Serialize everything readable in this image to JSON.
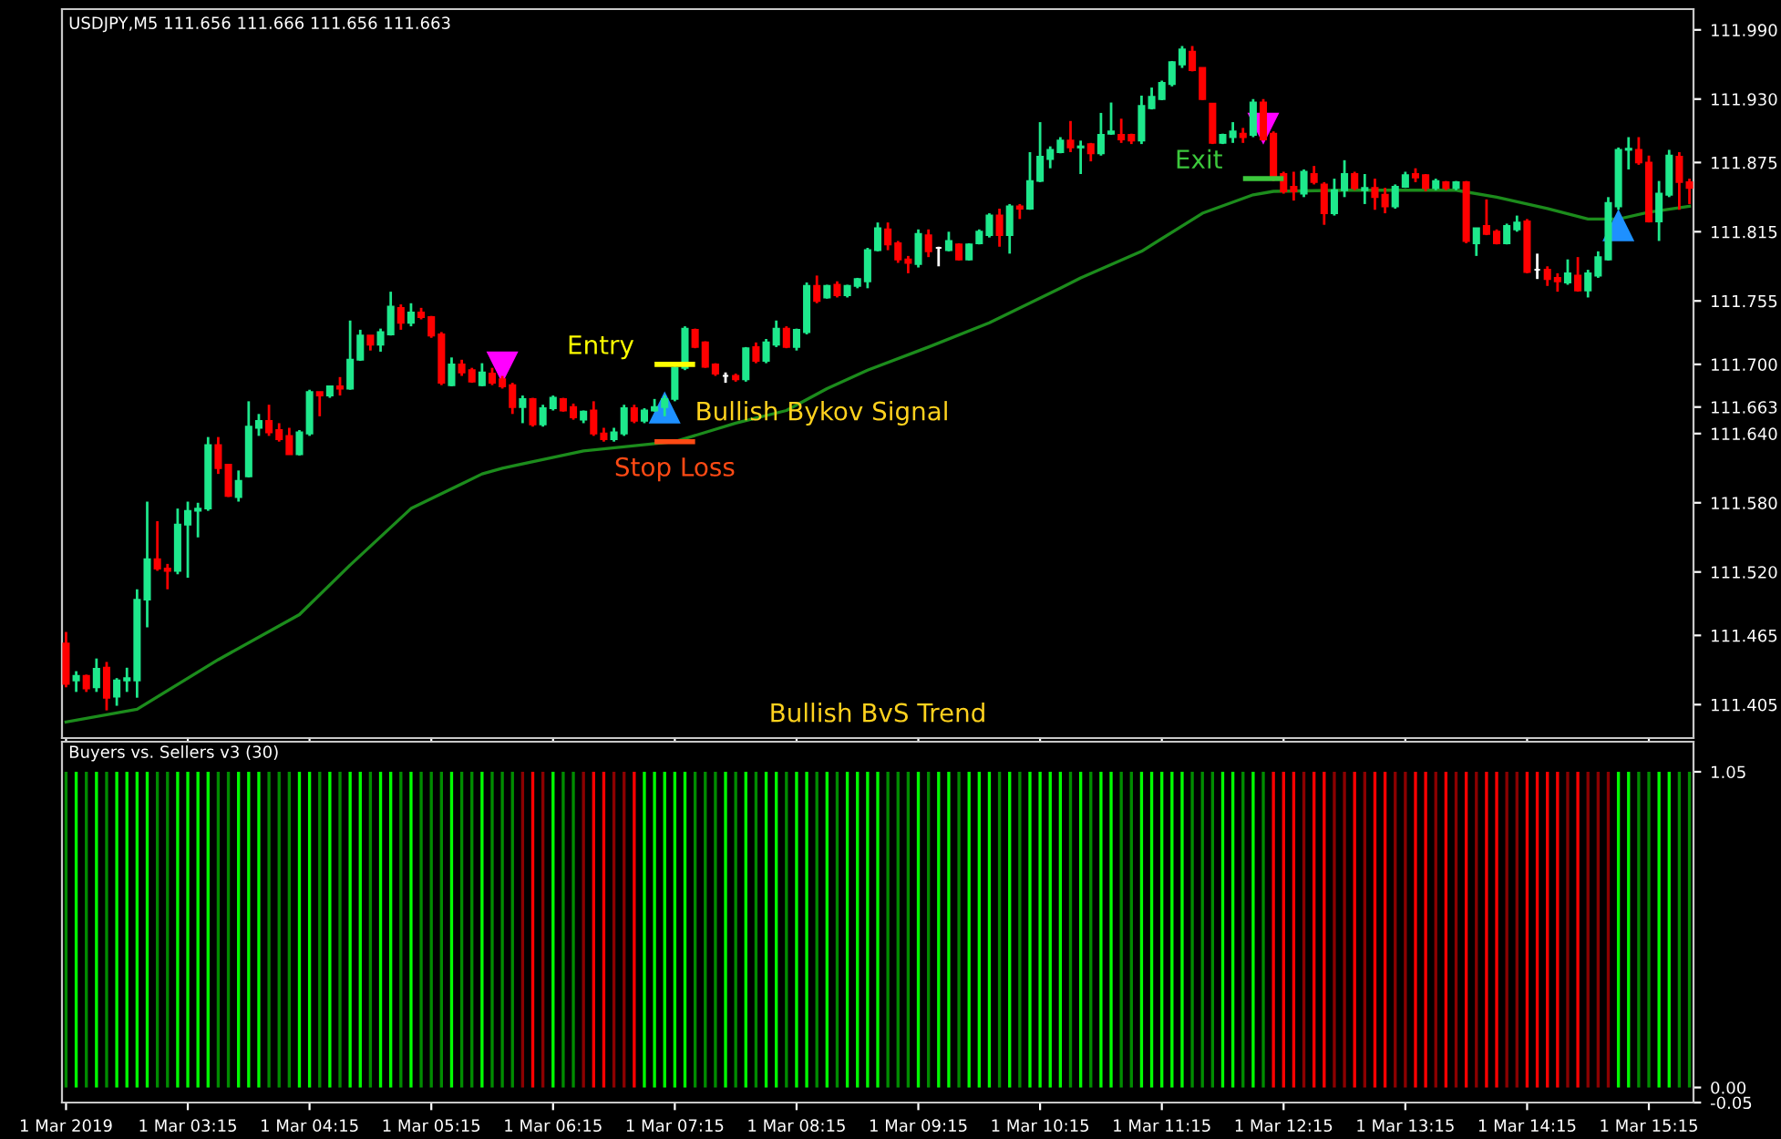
{
  "chart_data": [
    {
      "type": "candlestick",
      "title": "USDJPY,M5 111.656 111.666 111.656 111.663",
      "x": [
        "2019-03-01T02:15",
        "2019-03-01T02:20",
        "2019-03-01T02:25",
        "2019-03-01T02:30",
        "2019-03-01T02:35",
        "2019-03-01T02:40",
        "2019-03-01T02:45",
        "2019-03-01T02:50",
        "2019-03-01T02:55",
        "2019-03-01T03:00",
        "2019-03-01T03:05",
        "2019-03-01T03:10",
        "2019-03-01T03:15",
        "2019-03-01T03:20",
        "2019-03-01T03:25",
        "2019-03-01T03:30",
        "2019-03-01T03:35",
        "2019-03-01T03:40",
        "2019-03-01T03:45",
        "2019-03-01T03:50",
        "2019-03-01T03:55",
        "2019-03-01T04:00",
        "2019-03-01T04:05",
        "2019-03-01T04:10",
        "2019-03-01T04:15",
        "2019-03-01T04:20",
        "2019-03-01T04:25",
        "2019-03-01T04:30",
        "2019-03-01T04:35",
        "2019-03-01T04:40",
        "2019-03-01T04:45",
        "2019-03-01T04:50",
        "2019-03-01T04:55",
        "2019-03-01T05:00",
        "2019-03-01T05:05",
        "2019-03-01T05:10",
        "2019-03-01T05:15",
        "2019-03-01T05:20",
        "2019-03-01T05:25",
        "2019-03-01T05:30",
        "2019-03-01T05:35",
        "2019-03-01T05:40",
        "2019-03-01T05:45",
        "2019-03-01T05:50",
        "2019-03-01T05:55",
        "2019-03-01T06:00",
        "2019-03-01T06:05",
        "2019-03-01T06:10",
        "2019-03-01T06:15",
        "2019-03-01T06:20",
        "2019-03-01T06:25",
        "2019-03-01T06:30",
        "2019-03-01T06:35",
        "2019-03-01T06:40",
        "2019-03-01T06:45",
        "2019-03-01T06:50",
        "2019-03-01T06:55",
        "2019-03-01T07:00",
        "2019-03-01T07:05",
        "2019-03-01T07:10",
        "2019-03-01T07:15",
        "2019-03-01T07:20",
        "2019-03-01T07:25",
        "2019-03-01T07:30",
        "2019-03-01T07:35",
        "2019-03-01T07:40",
        "2019-03-01T07:45",
        "2019-03-01T07:50",
        "2019-03-01T07:55",
        "2019-03-01T08:00",
        "2019-03-01T08:05",
        "2019-03-01T08:10",
        "2019-03-01T08:15",
        "2019-03-01T08:20",
        "2019-03-01T08:25",
        "2019-03-01T08:30",
        "2019-03-01T08:35",
        "2019-03-01T08:40",
        "2019-03-01T08:45",
        "2019-03-01T08:50",
        "2019-03-01T08:55",
        "2019-03-01T09:00",
        "2019-03-01T09:05",
        "2019-03-01T09:10",
        "2019-03-01T09:15",
        "2019-03-01T09:20",
        "2019-03-01T09:25",
        "2019-03-01T09:30",
        "2019-03-01T09:35",
        "2019-03-01T09:40",
        "2019-03-01T09:45",
        "2019-03-01T09:50",
        "2019-03-01T09:55",
        "2019-03-01T10:00",
        "2019-03-01T10:05",
        "2019-03-01T10:10",
        "2019-03-01T10:15",
        "2019-03-01T10:20",
        "2019-03-01T10:25",
        "2019-03-01T10:30",
        "2019-03-01T10:35",
        "2019-03-01T10:40",
        "2019-03-01T10:45",
        "2019-03-01T10:50",
        "2019-03-01T10:55",
        "2019-03-01T11:00",
        "2019-03-01T11:05",
        "2019-03-01T11:10",
        "2019-03-01T11:15",
        "2019-03-01T11:20",
        "2019-03-01T11:25",
        "2019-03-01T11:30",
        "2019-03-01T11:35",
        "2019-03-01T11:40",
        "2019-03-01T11:45",
        "2019-03-01T11:50",
        "2019-03-01T11:55",
        "2019-03-01T12:00",
        "2019-03-01T12:05",
        "2019-03-01T12:10",
        "2019-03-01T12:15",
        "2019-03-01T12:20",
        "2019-03-01T12:25",
        "2019-03-01T12:30",
        "2019-03-01T12:35",
        "2019-03-01T12:40",
        "2019-03-01T12:45",
        "2019-03-01T12:50",
        "2019-03-01T12:55",
        "2019-03-01T13:00",
        "2019-03-01T13:05",
        "2019-03-01T13:10",
        "2019-03-01T13:15",
        "2019-03-01T13:20",
        "2019-03-01T13:25",
        "2019-03-01T13:30",
        "2019-03-01T13:35",
        "2019-03-01T13:40",
        "2019-03-01T13:45",
        "2019-03-01T13:50",
        "2019-03-01T13:55",
        "2019-03-01T14:00",
        "2019-03-01T14:05",
        "2019-03-01T14:10",
        "2019-03-01T14:15",
        "2019-03-01T14:20",
        "2019-03-01T14:25",
        "2019-03-01T14:30",
        "2019-03-01T14:35",
        "2019-03-01T14:40",
        "2019-03-01T14:45",
        "2019-03-01T14:50",
        "2019-03-01T14:55",
        "2019-03-01T15:00",
        "2019-03-01T15:05",
        "2019-03-01T15:10",
        "2019-03-01T15:15",
        "2019-03-01T15:20",
        "2019-03-01T15:25",
        "2019-03-01T15:30",
        "2019-03-01T15:35"
      ],
      "ohlc": [
        [
          111.458,
          111.468,
          111.42,
          111.423
        ],
        [
          111.426,
          111.434,
          111.416,
          111.43
        ],
        [
          111.43,
          111.431,
          111.416,
          111.419
        ],
        [
          111.42,
          111.445,
          111.416,
          111.436
        ],
        [
          111.437,
          111.442,
          111.4,
          111.411
        ],
        [
          111.412,
          111.428,
          111.404,
          111.426
        ],
        [
          111.426,
          111.437,
          111.416,
          111.428
        ],
        [
          111.426,
          111.505,
          111.411,
          111.496
        ],
        [
          111.496,
          111.581,
          111.472,
          111.531
        ],
        [
          111.531,
          111.564,
          111.521,
          111.523
        ],
        [
          111.523,
          111.527,
          111.505,
          111.521
        ],
        [
          111.521,
          111.575,
          111.518,
          111.561
        ],
        [
          111.561,
          111.581,
          111.515,
          111.573
        ],
        [
          111.573,
          111.58,
          111.55,
          111.575
        ],
        [
          111.575,
          111.637,
          111.573,
          111.63
        ],
        [
          111.63,
          111.637,
          111.605,
          111.61
        ],
        [
          111.613,
          111.613,
          111.585,
          111.586
        ],
        [
          111.585,
          111.608,
          111.581,
          111.599
        ],
        [
          111.603,
          111.668,
          111.602,
          111.646
        ],
        [
          111.645,
          111.657,
          111.638,
          111.651
        ],
        [
          111.651,
          111.665,
          111.638,
          111.641
        ],
        [
          111.643,
          111.649,
          111.633,
          111.635
        ],
        [
          111.638,
          111.645,
          111.622,
          111.622
        ],
        [
          111.622,
          111.643,
          111.621,
          111.641
        ],
        [
          111.64,
          111.678,
          111.638,
          111.676
        ],
        [
          111.676,
          111.676,
          111.655,
          111.673
        ],
        [
          111.673,
          111.681,
          111.671,
          111.681
        ],
        [
          111.681,
          111.689,
          111.673,
          111.679
        ],
        [
          111.679,
          111.738,
          111.678,
          111.704
        ],
        [
          111.704,
          111.73,
          111.703,
          111.725
        ],
        [
          111.725,
          111.725,
          111.712,
          111.717
        ],
        [
          111.717,
          111.731,
          111.711,
          111.728
        ],
        [
          111.726,
          111.763,
          111.725,
          111.75
        ],
        [
          111.749,
          111.752,
          111.73,
          111.736
        ],
        [
          111.736,
          111.753,
          111.733,
          111.745
        ],
        [
          111.745,
          111.749,
          111.739,
          111.741
        ],
        [
          111.741,
          111.742,
          111.723,
          111.725
        ],
        [
          111.726,
          111.728,
          111.682,
          111.684
        ],
        [
          111.682,
          111.706,
          111.681,
          111.7
        ],
        [
          111.7,
          111.704,
          111.69,
          111.693
        ],
        [
          111.695,
          111.697,
          111.684,
          111.685
        ],
        [
          111.682,
          111.701,
          111.681,
          111.693
        ],
        [
          111.692,
          111.697,
          111.682,
          111.684
        ],
        [
          111.687,
          111.69,
          111.679,
          111.681
        ],
        [
          111.682,
          111.684,
          111.657,
          111.663
        ],
        [
          111.663,
          111.673,
          111.649,
          111.67
        ],
        [
          111.67,
          111.671,
          111.646,
          111.648
        ],
        [
          111.648,
          111.665,
          111.646,
          111.662
        ],
        [
          111.662,
          111.673,
          111.66,
          111.671
        ],
        [
          111.67,
          111.671,
          111.659,
          111.66
        ],
        [
          111.663,
          111.666,
          111.652,
          111.654
        ],
        [
          111.652,
          111.66,
          111.649,
          111.659
        ],
        [
          111.66,
          111.668,
          111.638,
          111.64
        ],
        [
          111.64,
          111.645,
          111.633,
          111.635
        ],
        [
          111.635,
          111.645,
          111.633,
          111.641
        ],
        [
          111.64,
          111.665,
          111.638,
          111.662
        ],
        [
          111.662,
          111.665,
          111.649,
          111.651
        ],
        [
          111.651,
          111.662,
          111.649,
          111.66
        ],
        [
          111.66,
          111.67,
          111.659,
          111.663
        ],
        [
          111.663,
          111.673,
          111.655,
          111.67
        ],
        [
          111.67,
          111.698,
          111.668,
          111.697
        ],
        [
          111.697,
          111.733,
          111.695,
          111.731
        ],
        [
          111.73,
          111.731,
          111.714,
          111.715
        ],
        [
          111.719,
          111.72,
          111.697,
          111.698
        ],
        [
          111.7,
          111.701,
          111.69,
          111.692
        ],
        [
          111.69,
          111.693,
          111.684,
          111.69
        ],
        [
          111.69,
          111.692,
          111.685,
          111.687
        ],
        [
          111.687,
          111.715,
          111.685,
          111.714
        ],
        [
          111.715,
          111.719,
          111.701,
          111.703
        ],
        [
          111.703,
          111.722,
          111.701,
          111.719
        ],
        [
          111.717,
          111.738,
          111.715,
          111.731
        ],
        [
          111.731,
          111.733,
          111.714,
          111.715
        ],
        [
          111.715,
          111.731,
          111.712,
          111.73
        ],
        [
          111.728,
          111.771,
          111.726,
          111.768
        ],
        [
          111.768,
          111.777,
          111.753,
          111.755
        ],
        [
          111.758,
          111.769,
          111.757,
          111.768
        ],
        [
          111.769,
          111.772,
          111.758,
          111.76
        ],
        [
          111.76,
          111.769,
          111.758,
          111.768
        ],
        [
          111.768,
          111.775,
          111.766,
          111.774
        ],
        [
          111.772,
          111.801,
          111.766,
          111.799
        ],
        [
          111.799,
          111.823,
          111.798,
          111.818
        ],
        [
          111.817,
          111.823,
          111.799,
          111.804
        ],
        [
          111.805,
          111.807,
          111.788,
          111.791
        ],
        [
          111.791,
          111.794,
          111.779,
          111.788
        ],
        [
          111.787,
          111.817,
          111.784,
          111.813
        ],
        [
          111.812,
          111.817,
          111.793,
          111.798
        ],
        [
          111.801,
          111.802,
          111.785,
          111.801
        ],
        [
          111.799,
          111.815,
          111.798,
          111.807
        ],
        [
          111.804,
          111.805,
          111.79,
          111.791
        ],
        [
          111.791,
          111.805,
          111.79,
          111.804
        ],
        [
          111.805,
          111.817,
          111.804,
          111.815
        ],
        [
          111.812,
          111.831,
          111.81,
          111.829
        ],
        [
          111.829,
          111.835,
          111.802,
          111.812
        ],
        [
          111.812,
          111.839,
          111.796,
          111.837
        ],
        [
          111.837,
          111.839,
          111.826,
          111.835
        ],
        [
          111.835,
          111.884,
          111.834,
          111.859
        ],
        [
          111.859,
          111.91,
          111.858,
          111.88
        ],
        [
          111.878,
          111.889,
          111.87,
          111.886
        ],
        [
          111.884,
          111.897,
          111.883,
          111.894
        ],
        [
          111.894,
          111.911,
          111.884,
          111.888
        ],
        [
          111.888,
          111.894,
          111.865,
          111.889
        ],
        [
          111.891,
          111.892,
          111.876,
          111.883
        ],
        [
          111.883,
          111.918,
          111.881,
          111.899
        ],
        [
          111.9,
          111.927,
          111.899,
          111.902
        ],
        [
          111.899,
          111.913,
          111.892,
          111.895
        ],
        [
          111.899,
          111.9,
          111.891,
          111.894
        ],
        [
          111.894,
          111.933,
          111.891,
          111.924
        ],
        [
          111.922,
          111.94,
          111.921,
          111.932
        ],
        [
          111.93,
          111.946,
          111.929,
          111.944
        ],
        [
          111.943,
          111.963,
          111.941,
          111.962
        ],
        [
          111.96,
          111.976,
          111.957,
          111.973
        ],
        [
          111.971,
          111.976,
          111.954,
          111.955
        ],
        [
          111.957,
          111.957,
          111.929,
          111.93
        ],
        [
          111.926,
          111.926,
          111.891,
          111.892
        ],
        [
          111.892,
          111.9,
          111.891,
          111.899
        ],
        [
          111.897,
          111.91,
          111.892,
          111.902
        ],
        [
          111.9,
          111.905,
          111.892,
          111.897
        ],
        [
          111.899,
          111.93,
          111.897,
          111.927
        ],
        [
          111.927,
          111.93,
          111.894,
          111.895
        ],
        [
          111.9,
          111.902,
          111.859,
          111.861
        ],
        [
          111.865,
          111.867,
          111.848,
          111.85
        ],
        [
          111.854,
          111.867,
          111.842,
          111.85
        ],
        [
          111.848,
          111.869,
          111.845,
          111.867
        ],
        [
          111.865,
          111.872,
          111.856,
          111.858
        ],
        [
          111.856,
          111.858,
          111.821,
          111.831
        ],
        [
          111.831,
          111.861,
          111.829,
          111.851
        ],
        [
          111.851,
          111.877,
          111.845,
          111.865
        ],
        [
          111.865,
          111.867,
          111.851,
          111.853
        ],
        [
          111.851,
          111.865,
          111.839,
          111.853
        ],
        [
          111.853,
          111.861,
          111.834,
          111.845
        ],
        [
          111.847,
          111.853,
          111.831,
          111.837
        ],
        [
          111.837,
          111.856,
          111.835,
          111.854
        ],
        [
          111.854,
          111.867,
          111.853,
          111.864
        ],
        [
          111.865,
          111.87,
          111.858,
          111.862
        ],
        [
          111.864,
          111.865,
          111.85,
          111.853
        ],
        [
          111.853,
          111.861,
          111.851,
          111.859
        ],
        [
          111.858,
          111.859,
          111.851,
          111.853
        ],
        [
          111.853,
          111.859,
          111.851,
          111.858
        ],
        [
          111.858,
          111.859,
          111.805,
          111.807
        ],
        [
          111.805,
          111.818,
          111.794,
          111.818
        ],
        [
          111.82,
          111.843,
          111.812,
          111.813
        ],
        [
          111.815,
          111.817,
          111.804,
          111.805
        ],
        [
          111.805,
          111.822,
          111.804,
          111.82
        ],
        [
          111.817,
          111.829,
          111.815,
          111.823
        ],
        [
          111.824,
          111.826,
          111.779,
          111.78
        ],
        [
          111.782,
          111.796,
          111.774,
          111.782
        ],
        [
          111.782,
          111.785,
          111.768,
          111.774
        ],
        [
          111.775,
          111.779,
          111.763,
          111.772
        ],
        [
          111.771,
          111.791,
          111.769,
          111.779
        ],
        [
          111.777,
          111.793,
          111.763,
          111.764
        ],
        [
          111.764,
          111.782,
          111.758,
          111.779
        ],
        [
          111.777,
          111.798,
          111.775,
          111.793
        ],
        [
          111.791,
          111.845,
          111.79,
          111.84
        ],
        [
          111.837,
          111.888,
          111.834,
          111.886
        ],
        [
          111.886,
          111.897,
          111.869,
          111.887
        ],
        [
          111.886,
          111.897,
          111.873,
          111.875
        ],
        [
          111.875,
          111.881,
          111.823,
          111.824
        ],
        [
          111.824,
          111.859,
          111.807,
          111.848
        ],
        [
          111.847,
          111.886,
          111.845,
          111.881
        ],
        [
          111.88,
          111.884,
          111.834,
          111.858
        ],
        [
          111.858,
          111.861,
          111.839,
          111.853
        ]
      ],
      "colors": [
        "#ff0000",
        "#1ee88c",
        "#ff0000",
        "#1ee88c",
        "#ff0000",
        "#1ee88c",
        "#1ee88c",
        "#1ee88c",
        "#1ee88c",
        "#ff0000",
        "#ff0000",
        "#1ee88c",
        "#1ee88c",
        "#1ee88c",
        "#1ee88c",
        "#ff0000",
        "#ff0000",
        "#1ee88c",
        "#1ee88c",
        "#1ee88c",
        "#ff0000",
        "#ff0000",
        "#ff0000",
        "#1ee88c",
        "#1ee88c",
        "#ff0000",
        "#1ee88c",
        "#ff0000",
        "#1ee88c",
        "#1ee88c",
        "#ff0000",
        "#1ee88c",
        "#1ee88c",
        "#ff0000",
        "#1ee88c",
        "#ff0000",
        "#ff0000",
        "#ff0000",
        "#1ee88c",
        "#ff0000",
        "#ff0000",
        "#1ee88c",
        "#ff0000",
        "#ff0000",
        "#ff0000",
        "#1ee88c",
        "#ff0000",
        "#1ee88c",
        "#1ee88c",
        "#ff0000",
        "#ff0000",
        "#1ee88c",
        "#ff0000",
        "#ff0000",
        "#1ee88c",
        "#1ee88c",
        "#ff0000",
        "#1ee88c",
        "#1ee88c",
        "#1ee88c",
        "#1ee88c",
        "#1ee88c",
        "#ff0000",
        "#ff0000",
        "#ff0000",
        "#ffffff",
        "#ff0000",
        "#1ee88c",
        "#ff0000",
        "#1ee88c",
        "#1ee88c",
        "#ff0000",
        "#1ee88c",
        "#1ee88c",
        "#ff0000",
        "#1ee88c",
        "#ff0000",
        "#1ee88c",
        "#1ee88c",
        "#1ee88c",
        "#1ee88c",
        "#ff0000",
        "#ff0000",
        "#ff0000",
        "#1ee88c",
        "#ff0000",
        "#ffffff",
        "#1ee88c",
        "#ff0000",
        "#1ee88c",
        "#1ee88c",
        "#1ee88c",
        "#ff0000",
        "#1ee88c",
        "#ff0000",
        "#1ee88c",
        "#1ee88c",
        "#1ee88c",
        "#1ee88c",
        "#ff0000",
        "#1ee88c",
        "#ff0000",
        "#1ee88c",
        "#1ee88c",
        "#ff0000",
        "#ff0000",
        "#1ee88c",
        "#1ee88c",
        "#1ee88c",
        "#1ee88c",
        "#1ee88c",
        "#ff0000",
        "#ff0000",
        "#ff0000",
        "#1ee88c",
        "#1ee88c",
        "#ff0000",
        "#1ee88c",
        "#ff0000",
        "#ff0000",
        "#ff0000",
        "#ff0000",
        "#1ee88c",
        "#ff0000",
        "#ff0000",
        "#1ee88c",
        "#1ee88c",
        "#ff0000",
        "#1ee88c",
        "#ff0000",
        "#ff0000",
        "#1ee88c",
        "#1ee88c",
        "#ff0000",
        "#ff0000",
        "#1ee88c",
        "#ff0000",
        "#1ee88c",
        "#ff0000",
        "#1ee88c",
        "#ff0000",
        "#ff0000",
        "#1ee88c",
        "#1ee88c",
        "#ff0000",
        "#ffffff",
        "#ff0000",
        "#ff0000",
        "#1ee88c",
        "#ff0000",
        "#1ee88c",
        "#1ee88c",
        "#1ee88c",
        "#1ee88c",
        "#1ee88c",
        "#ff0000",
        "#ff0000",
        "#1ee88c",
        "#1ee88c",
        "#ff0000",
        "#ff0000"
      ],
      "series": [
        {
          "type": "line",
          "color": "#1c8c1c",
          "x": [
            "2019-03-01T02:15",
            "2019-03-01T02:50",
            "2019-03-01T03:30",
            "2019-03-01T04:10",
            "2019-03-01T04:35",
            "2019-03-01T05:05",
            "2019-03-01T05:40",
            "2019-03-01T05:50",
            "2019-03-01T06:30",
            "2019-03-01T07:15",
            "2019-03-01T07:45",
            "2019-03-01T08:10",
            "2019-03-01T08:30",
            "2019-03-01T08:50",
            "2019-03-01T09:20",
            "2019-03-01T09:50",
            "2019-03-01T10:25",
            "2019-03-01T10:35",
            "2019-03-01T11:05",
            "2019-03-01T11:35",
            "2019-03-01T12:00",
            "2019-03-01T12:10",
            "2019-03-01T12:45",
            "2019-03-01T13:40",
            "2019-03-01T14:00",
            "2019-03-01T14:25",
            "2019-03-01T14:45",
            "2019-03-01T15:00",
            "2019-03-01T15:15",
            "2019-03-01T15:35"
          ],
          "values": [
            111.39,
            111.401,
            111.444,
            111.483,
            111.526,
            111.575,
            111.605,
            111.61,
            111.625,
            111.633,
            111.649,
            111.66,
            111.679,
            111.695,
            111.715,
            111.736,
            111.766,
            111.775,
            111.798,
            111.831,
            111.847,
            111.85,
            111.851,
            111.851,
            111.845,
            111.835,
            111.826,
            111.826,
            111.832,
            111.837
          ]
        },
        {
          "type": "scatter",
          "color": "#ff00ff",
          "marker": "triangle",
          "x": [
            "2019-03-01T05:50",
            "2019-03-01T12:05"
          ],
          "values": [
            111.698,
            111.905
          ]
        },
        {
          "type": "scatter",
          "color": "#1e90ff",
          "marker": "triangle",
          "x": [
            "2019-03-01T07:10",
            "2019-03-01T15:00"
          ],
          "values": [
            111.662,
            111.82
          ]
        }
      ],
      "xlim": [
        "2019-03-01T02:13",
        "2019-03-01T15:37"
      ],
      "ylim": [
        111.376,
        112.008
      ],
      "xticks": [
        {
          "value": "2019-03-01T02:15",
          "label": null
        },
        {
          "value": "2019-03-01T03:15",
          "label": null
        },
        {
          "value": "2019-03-01T04:15",
          "label": null
        },
        {
          "value": "2019-03-01T05:15",
          "label": null
        },
        {
          "value": "2019-03-01T06:15",
          "label": null
        },
        {
          "value": "2019-03-01T07:15",
          "label": null
        },
        {
          "value": "2019-03-01T08:15",
          "label": null
        },
        {
          "value": "2019-03-01T09:15",
          "label": null
        },
        {
          "value": "2019-03-01T10:15",
          "label": null
        },
        {
          "value": "2019-03-01T11:15",
          "label": null
        },
        {
          "value": "2019-03-01T12:15",
          "label": null
        },
        {
          "value": "2019-03-01T13:15",
          "label": null
        },
        {
          "value": "2019-03-01T14:15",
          "label": null
        },
        {
          "value": "2019-03-01T15:15",
          "label": null
        }
      ],
      "yticks": [
        {
          "value": 111.99,
          "label": "111.990"
        },
        {
          "value": 111.93,
          "label": "111.930"
        },
        {
          "value": 111.875,
          "label": "111.875"
        },
        {
          "value": 111.815,
          "label": "111.815"
        },
        {
          "value": 111.755,
          "label": "111.755"
        },
        {
          "value": 111.7,
          "label": "111.700"
        },
        {
          "value": 111.663,
          "label": "111.663"
        },
        {
          "value": 111.64,
          "label": "111.640"
        },
        {
          "value": 111.58,
          "label": "111.580"
        },
        {
          "value": 111.52,
          "label": "111.520"
        },
        {
          "value": 111.465,
          "label": "111.465"
        },
        {
          "value": 111.405,
          "label": "111.405"
        }
      ],
      "tick_labels": "y",
      "annotations": [
        {
          "text": "Entry",
          "x": "2019-03-01T07:15",
          "y": 111.7
        },
        {
          "text": "Stop Loss",
          "x": "2019-03-01T07:15",
          "y": 111.633
        },
        {
          "text": "Bullish Bykov Signal",
          "x": "2019-03-01T07:10",
          "y": 111.662
        },
        {
          "text": "Exit",
          "x": "2019-03-01T12:05",
          "y": 111.861
        },
        "Bullish BvS Trend"
      ]
    },
    {
      "type": "bar",
      "title": "Buyers vs. Sellers v3 (30)",
      "x": [
        "2019-03-01T02:15",
        "2019-03-01T02:20",
        "2019-03-01T02:25",
        "2019-03-01T02:30",
        "2019-03-01T02:35",
        "2019-03-01T02:40",
        "2019-03-01T02:45",
        "2019-03-01T02:50",
        "2019-03-01T02:55",
        "2019-03-01T03:00",
        "2019-03-01T03:05",
        "2019-03-01T03:10",
        "2019-03-01T03:15",
        "2019-03-01T03:20",
        "2019-03-01T03:25",
        "2019-03-01T03:30",
        "2019-03-01T03:35",
        "2019-03-01T03:40",
        "2019-03-01T03:45",
        "2019-03-01T03:50",
        "2019-03-01T03:55",
        "2019-03-01T04:00",
        "2019-03-01T04:05",
        "2019-03-01T04:10",
        "2019-03-01T04:15",
        "2019-03-01T04:20",
        "2019-03-01T04:25",
        "2019-03-01T04:30",
        "2019-03-01T04:35",
        "2019-03-01T04:40",
        "2019-03-01T04:45",
        "2019-03-01T04:50",
        "2019-03-01T04:55",
        "2019-03-01T05:00",
        "2019-03-01T05:05",
        "2019-03-01T05:10",
        "2019-03-01T05:15",
        "2019-03-01T05:20",
        "2019-03-01T05:25",
        "2019-03-01T05:30",
        "2019-03-01T05:35",
        "2019-03-01T05:40",
        "2019-03-01T05:45",
        "2019-03-01T05:50",
        "2019-03-01T05:55",
        "2019-03-01T06:00",
        "2019-03-01T06:05",
        "2019-03-01T06:10",
        "2019-03-01T06:15",
        "2019-03-01T06:20",
        "2019-03-01T06:25",
        "2019-03-01T06:30",
        "2019-03-01T06:35",
        "2019-03-01T06:40",
        "2019-03-01T06:45",
        "2019-03-01T06:50",
        "2019-03-01T06:55",
        "2019-03-01T07:00",
        "2019-03-01T07:05",
        "2019-03-01T07:10",
        "2019-03-01T07:15",
        "2019-03-01T07:20",
        "2019-03-01T07:25",
        "2019-03-01T07:30",
        "2019-03-01T07:35",
        "2019-03-01T07:40",
        "2019-03-01T07:45",
        "2019-03-01T07:50",
        "2019-03-01T07:55",
        "2019-03-01T08:00",
        "2019-03-01T08:05",
        "2019-03-01T08:10",
        "2019-03-01T08:15",
        "2019-03-01T08:20",
        "2019-03-01T08:25",
        "2019-03-01T08:30",
        "2019-03-01T08:35",
        "2019-03-01T08:40",
        "2019-03-01T08:45",
        "2019-03-01T08:50",
        "2019-03-01T08:55",
        "2019-03-01T09:00",
        "2019-03-01T09:05",
        "2019-03-01T09:10",
        "2019-03-01T09:15",
        "2019-03-01T09:20",
        "2019-03-01T09:25",
        "2019-03-01T09:30",
        "2019-03-01T09:35",
        "2019-03-01T09:40",
        "2019-03-01T09:45",
        "2019-03-01T09:50",
        "2019-03-01T09:55",
        "2019-03-01T10:00",
        "2019-03-01T10:05",
        "2019-03-01T10:10",
        "2019-03-01T10:15",
        "2019-03-01T10:20",
        "2019-03-01T10:25",
        "2019-03-01T10:30",
        "2019-03-01T10:35",
        "2019-03-01T10:40",
        "2019-03-01T10:45",
        "2019-03-01T10:50",
        "2019-03-01T10:55",
        "2019-03-01T11:00",
        "2019-03-01T11:05",
        "2019-03-01T11:10",
        "2019-03-01T11:15",
        "2019-03-01T11:20",
        "2019-03-01T11:25",
        "2019-03-01T11:30",
        "2019-03-01T11:35",
        "2019-03-01T11:40",
        "2019-03-01T11:45",
        "2019-03-01T11:50",
        "2019-03-01T11:55",
        "2019-03-01T12:00",
        "2019-03-01T12:05",
        "2019-03-01T12:10",
        "2019-03-01T12:15",
        "2019-03-01T12:20",
        "2019-03-01T12:25",
        "2019-03-01T12:30",
        "2019-03-01T12:35",
        "2019-03-01T12:40",
        "2019-03-01T12:45",
        "2019-03-01T12:50",
        "2019-03-01T12:55",
        "2019-03-01T13:00",
        "2019-03-01T13:05",
        "2019-03-01T13:10",
        "2019-03-01T13:15",
        "2019-03-01T13:20",
        "2019-03-01T13:25",
        "2019-03-01T13:30",
        "2019-03-01T13:35",
        "2019-03-01T13:40",
        "2019-03-01T13:45",
        "2019-03-01T13:50",
        "2019-03-01T13:55",
        "2019-03-01T14:00",
        "2019-03-01T14:05",
        "2019-03-01T14:10",
        "2019-03-01T14:15",
        "2019-03-01T14:20",
        "2019-03-01T14:25",
        "2019-03-01T14:30",
        "2019-03-01T14:35",
        "2019-03-01T14:40",
        "2019-03-01T14:45",
        "2019-03-01T14:50",
        "2019-03-01T14:55",
        "2019-03-01T15:00",
        "2019-03-01T15:05",
        "2019-03-01T15:10",
        "2019-03-01T15:15",
        "2019-03-01T15:20",
        "2019-03-01T15:25",
        "2019-03-01T15:30",
        "2019-03-01T15:35"
      ],
      "xlim": [
        "2019-03-01T02:13",
        "2019-03-01T15:37"
      ],
      "xticks": [
        {
          "value": "2019-03-01T02:15",
          "label": "1 Mar 2019"
        },
        {
          "value": "2019-03-01T03:15",
          "label": "1 Mar 03:15"
        },
        {
          "value": "2019-03-01T04:15",
          "label": "1 Mar 04:15"
        },
        {
          "value": "2019-03-01T05:15",
          "label": "1 Mar 05:15"
        },
        {
          "value": "2019-03-01T06:15",
          "label": "1 Mar 06:15"
        },
        {
          "value": "2019-03-01T07:15",
          "label": "1 Mar 07:15"
        },
        {
          "value": "2019-03-01T08:15",
          "label": "1 Mar 08:15"
        },
        {
          "value": "2019-03-01T09:15",
          "label": "1 Mar 09:15"
        },
        {
          "value": "2019-03-01T10:15",
          "label": "1 Mar 10:15"
        },
        {
          "value": "2019-03-01T11:15",
          "label": "1 Mar 11:15"
        },
        {
          "value": "2019-03-01T12:15",
          "label": "1 Mar 12:15"
        },
        {
          "value": "2019-03-01T13:15",
          "label": "1 Mar 13:15"
        },
        {
          "value": "2019-03-01T14:15",
          "label": "1 Mar 14:15"
        },
        {
          "value": "2019-03-01T15:15",
          "label": "1 Mar 15:15"
        }
      ],
      "values": [
        1.05,
        1.05,
        1.05,
        1.05,
        1.05,
        1.05,
        1.05,
        1.05,
        1.05,
        1.05,
        1.05,
        1.05,
        1.05,
        1.05,
        1.05,
        1.05,
        1.05,
        1.05,
        1.05,
        1.05,
        1.05,
        1.05,
        1.05,
        1.05,
        1.05,
        1.05,
        1.05,
        1.05,
        1.05,
        1.05,
        1.05,
        1.05,
        1.05,
        1.05,
        1.05,
        1.05,
        1.05,
        1.05,
        1.05,
        1.05,
        1.05,
        1.05,
        1.05,
        1.05,
        1.05,
        1.05,
        1.05,
        1.05,
        1.05,
        1.05,
        1.05,
        1.05,
        1.05,
        1.05,
        1.05,
        1.05,
        1.05,
        1.05,
        1.05,
        1.05,
        1.05,
        1.05,
        1.05,
        1.05,
        1.05,
        1.05,
        1.05,
        1.05,
        1.05,
        1.05,
        1.05,
        1.05,
        1.05,
        1.05,
        1.05,
        1.05,
        1.05,
        1.05,
        1.05,
        1.05,
        1.05,
        1.05,
        1.05,
        1.05,
        1.05,
        1.05,
        1.05,
        1.05,
        1.05,
        1.05,
        1.05,
        1.05,
        1.05,
        1.05,
        1.05,
        1.05,
        1.05,
        1.05,
        1.05,
        1.05,
        1.05,
        1.05,
        1.05,
        1.05,
        1.05,
        1.05,
        1.05,
        1.05,
        1.05,
        1.05,
        1.05,
        1.05,
        1.05,
        1.05,
        1.05,
        1.05,
        1.05,
        1.05,
        1.05,
        1.05,
        1.05,
        1.05,
        1.05,
        1.05,
        1.05,
        1.05,
        1.05,
        1.05,
        1.05,
        1.05,
        1.05,
        1.05,
        1.05,
        1.05,
        1.05,
        1.05,
        1.05,
        1.05,
        1.05,
        1.05,
        1.05,
        1.05,
        1.05,
        1.05,
        1.05,
        1.05,
        1.05,
        1.05,
        1.05,
        1.05,
        1.05,
        1.05,
        1.05,
        1.05,
        1.05,
        1.05,
        1.05,
        1.05,
        1.05,
        1.05,
        1.05
      ],
      "colors": [
        "#008c00",
        "#00ff00",
        "#008c00",
        "#00ff00",
        "#008c00",
        "#00ff00",
        "#00ff00",
        "#00ff00",
        "#00ff00",
        "#008c00",
        "#008c00",
        "#00ff00",
        "#00ff00",
        "#00ff00",
        "#00ff00",
        "#008c00",
        "#008c00",
        "#00ff00",
        "#00ff00",
        "#00ff00",
        "#008c00",
        "#008c00",
        "#008c00",
        "#00ff00",
        "#00ff00",
        "#008c00",
        "#00ff00",
        "#008c00",
        "#00ff00",
        "#00ff00",
        "#008c00",
        "#00ff00",
        "#00ff00",
        "#008c00",
        "#00ff00",
        "#008c00",
        "#008c00",
        "#008c00",
        "#00ff00",
        "#008c00",
        "#008c00",
        "#00ff00",
        "#008c00",
        "#008c00",
        "#008c00",
        "#8b0000",
        "#ff0000",
        "#8b0000",
        "#00ff00",
        "#008c00",
        "#008c00",
        "#8b0000",
        "#ff0000",
        "#ff0000",
        "#8b0000",
        "#8b0000",
        "#ff0000",
        "#00ff00",
        "#00ff00",
        "#00ff00",
        "#00ff00",
        "#00ff00",
        "#008c00",
        "#008c00",
        "#008c00",
        "#00ff00",
        "#008c00",
        "#00ff00",
        "#008c00",
        "#00ff00",
        "#00ff00",
        "#008c00",
        "#00ff00",
        "#00ff00",
        "#008c00",
        "#00ff00",
        "#008c00",
        "#00ff00",
        "#00ff00",
        "#00ff00",
        "#00ff00",
        "#008c00",
        "#008c00",
        "#008c00",
        "#00ff00",
        "#008c00",
        "#00ff00",
        "#00ff00",
        "#008c00",
        "#00ff00",
        "#00ff00",
        "#00ff00",
        "#008c00",
        "#00ff00",
        "#008c00",
        "#00ff00",
        "#00ff00",
        "#00ff00",
        "#00ff00",
        "#008c00",
        "#00ff00",
        "#008c00",
        "#00ff00",
        "#00ff00",
        "#008c00",
        "#008c00",
        "#00ff00",
        "#00ff00",
        "#00ff00",
        "#00ff00",
        "#00ff00",
        "#008c00",
        "#008c00",
        "#008c00",
        "#00ff00",
        "#00ff00",
        "#008c00",
        "#00ff00",
        "#008c00",
        "#ff0000",
        "#ff0000",
        "#ff0000",
        "#8b0000",
        "#ff0000",
        "#ff0000",
        "#8b0000",
        "#8b0000",
        "#ff0000",
        "#8b0000",
        "#ff0000",
        "#ff0000",
        "#8b0000",
        "#8b0000",
        "#ff0000",
        "#ff0000",
        "#8b0000",
        "#ff0000",
        "#8b0000",
        "#ff0000",
        "#8b0000",
        "#ff0000",
        "#ff0000",
        "#8b0000",
        "#8b0000",
        "#ff0000",
        "#ff0000",
        "#ff0000",
        "#ff0000",
        "#8b0000",
        "#ff0000",
        "#8b0000",
        "#8b0000",
        "#8b0000",
        "#00ff00",
        "#00ff00",
        "#008c00",
        "#008c00",
        "#00ff00",
        "#00ff00",
        "#008c00",
        "#008c00"
      ],
      "ylim": [
        -0.05,
        1.15
      ],
      "yticks": [
        1.05,
        {
          "value": 0,
          "label": "0.00"
        },
        -0.05
      ]
    }
  ]
}
